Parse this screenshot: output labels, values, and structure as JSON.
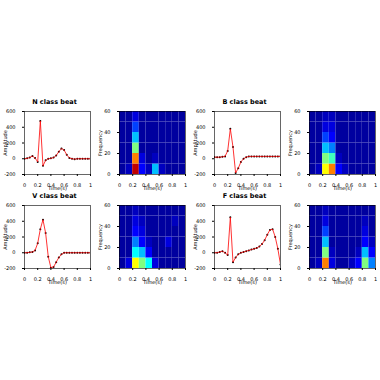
{
  "chart_data": [
    {
      "type": "line",
      "title": "N class beat",
      "x_label": "Time(s)",
      "y_label": "Amplitude",
      "xlim": [
        0,
        1
      ],
      "xticks": [
        0,
        0.2,
        0.4,
        0.6,
        0.8,
        1
      ],
      "ylim": [
        -200,
        600
      ],
      "yticks": [
        -200,
        0,
        200,
        400,
        600
      ],
      "x": [
        0,
        0.04,
        0.08,
        0.12,
        0.16,
        0.2,
        0.24,
        0.28,
        0.32,
        0.36,
        0.4,
        0.44,
        0.48,
        0.52,
        0.56,
        0.6,
        0.64,
        0.68,
        0.72,
        0.76,
        0.8,
        0.84,
        0.88,
        0.92,
        0.96,
        1
      ],
      "series": [
        {
          "color": "#000000",
          "marker": "dot",
          "line_style": "none",
          "values": [
            0,
            5,
            15,
            35,
            10,
            -40,
            480,
            -90,
            -20,
            0,
            5,
            15,
            40,
            90,
            130,
            110,
            50,
            10,
            0,
            -5,
            0,
            0,
            0,
            0,
            0,
            0
          ]
        },
        {
          "color": "#ff0000",
          "values": [
            0,
            5,
            15,
            35,
            10,
            -40,
            480,
            -90,
            -20,
            0,
            5,
            15,
            40,
            90,
            130,
            110,
            50,
            10,
            0,
            -5,
            0,
            0,
            0,
            0,
            0,
            0
          ]
        }
      ]
    },
    {
      "type": "heatmap",
      "x_label": "Time(s)",
      "y_label": "Frequency",
      "xlim": [
        0,
        1
      ],
      "xticks": [
        0,
        0.2,
        0.4,
        0.6,
        0.8,
        1
      ],
      "ylim": [
        0,
        60
      ],
      "yticks": [
        0,
        20,
        40,
        60
      ],
      "time_bins": [
        0,
        0.1,
        0.2,
        0.3,
        0.4,
        0.5,
        0.6,
        0.7,
        0.8,
        0.9,
        1
      ],
      "freq_bins": [
        0,
        10,
        20,
        30,
        40,
        50,
        60
      ],
      "clim": [
        0,
        1
      ],
      "values": [
        [
          0.05,
          0.1,
          0.9,
          0.2,
          0.1,
          0.35,
          0.1,
          0.05,
          0.05,
          0.05
        ],
        [
          0.05,
          0.05,
          0.7,
          0.15,
          0.05,
          0.1,
          0.05,
          0.05,
          0.05,
          0.05
        ],
        [
          0.05,
          0.05,
          0.5,
          0.05,
          0.05,
          0.05,
          0.05,
          0.05,
          0.05,
          0.05
        ],
        [
          0.05,
          0.05,
          0.35,
          0.05,
          0.05,
          0.05,
          0.05,
          0.05,
          0.05,
          0.05
        ],
        [
          0.05,
          0.05,
          0.25,
          0.05,
          0.05,
          0.05,
          0.05,
          0.05,
          0.05,
          0.05
        ],
        [
          0.05,
          0.05,
          0.15,
          0.05,
          0.05,
          0.05,
          0.05,
          0.05,
          0.05,
          0.05
        ]
      ]
    },
    {
      "type": "line",
      "title": "B class beat",
      "x_label": "Time(s)",
      "y_label": "Amplitude",
      "xlim": [
        0,
        1
      ],
      "xticks": [
        0,
        0.2,
        0.4,
        0.6,
        0.8,
        1
      ],
      "ylim": [
        -200,
        600
      ],
      "yticks": [
        -200,
        0,
        200,
        400,
        600
      ],
      "x": [
        0,
        0.04,
        0.08,
        0.12,
        0.16,
        0.2,
        0.24,
        0.28,
        0.32,
        0.36,
        0.4,
        0.44,
        0.48,
        0.52,
        0.56,
        0.6,
        0.64,
        0.68,
        0.72,
        0.76,
        0.8,
        0.84,
        0.88,
        0.92,
        0.96,
        1
      ],
      "series": [
        {
          "color": "#000000",
          "marker": "dot",
          "line_style": "none",
          "values": [
            20,
            20,
            20,
            25,
            30,
            100,
            380,
            150,
            -180,
            -120,
            -40,
            0,
            20,
            30,
            30,
            30,
            30,
            30,
            30,
            30,
            30,
            30,
            30,
            30,
            30,
            30
          ]
        },
        {
          "color": "#ff0000",
          "values": [
            20,
            20,
            20,
            25,
            30,
            100,
            380,
            150,
            -180,
            -120,
            -40,
            0,
            20,
            30,
            30,
            30,
            30,
            30,
            30,
            30,
            30,
            30,
            30,
            30,
            30,
            30
          ]
        }
      ]
    },
    {
      "type": "heatmap",
      "x_label": "Time(s)",
      "y_label": "Frequency",
      "xlim": [
        0,
        1
      ],
      "xticks": [
        0,
        0.2,
        0.4,
        0.6,
        0.8,
        1
      ],
      "ylim": [
        0,
        60
      ],
      "yticks": [
        0,
        20,
        40,
        60
      ],
      "time_bins": [
        0,
        0.1,
        0.2,
        0.3,
        0.4,
        0.5,
        0.6,
        0.7,
        0.8,
        0.9,
        1
      ],
      "freq_bins": [
        0,
        10,
        20,
        30,
        40,
        50,
        60
      ],
      "clim": [
        0,
        1
      ],
      "values": [
        [
          0.05,
          0.1,
          0.6,
          0.7,
          0.2,
          0.1,
          0.05,
          0.05,
          0.05,
          0.05
        ],
        [
          0.05,
          0.05,
          0.5,
          0.45,
          0.1,
          0.05,
          0.05,
          0.05,
          0.05,
          0.05
        ],
        [
          0.05,
          0.05,
          0.35,
          0.3,
          0.05,
          0.05,
          0.05,
          0.05,
          0.05,
          0.05
        ],
        [
          0.05,
          0.05,
          0.25,
          0.2,
          0.05,
          0.05,
          0.05,
          0.05,
          0.05,
          0.05
        ],
        [
          0.05,
          0.05,
          0.15,
          0.15,
          0.05,
          0.05,
          0.05,
          0.05,
          0.05,
          0.05
        ],
        [
          0.05,
          0.05,
          0.1,
          0.1,
          0.05,
          0.05,
          0.05,
          0.05,
          0.05,
          0.05
        ]
      ]
    },
    {
      "type": "line",
      "title": "V class beat",
      "x_label": "Time(s)",
      "y_label": "Amplitude",
      "xlim": [
        0,
        1
      ],
      "xticks": [
        0,
        0.2,
        0.4,
        0.6,
        0.8,
        1
      ],
      "ylim": [
        -200,
        600
      ],
      "yticks": [
        -200,
        0,
        200,
        400,
        600
      ],
      "x": [
        0,
        0.04,
        0.08,
        0.12,
        0.16,
        0.2,
        0.24,
        0.28,
        0.32,
        0.36,
        0.4,
        0.44,
        0.48,
        0.52,
        0.56,
        0.6,
        0.64,
        0.68,
        0.72,
        0.76,
        0.8,
        0.84,
        0.88,
        0.92,
        0.96,
        1
      ],
      "series": [
        {
          "color": "#000000",
          "marker": "dot",
          "line_style": "none",
          "values": [
            0,
            0,
            5,
            10,
            30,
            120,
            300,
            420,
            250,
            -50,
            -190,
            -180,
            -120,
            -60,
            -20,
            0,
            0,
            0,
            0,
            0,
            0,
            0,
            0,
            0,
            0,
            0
          ]
        },
        {
          "color": "#ff0000",
          "values": [
            0,
            0,
            5,
            10,
            30,
            120,
            300,
            420,
            250,
            -50,
            -190,
            -180,
            -120,
            -60,
            -20,
            0,
            0,
            0,
            0,
            0,
            0,
            0,
            0,
            0,
            0,
            0
          ]
        }
      ]
    },
    {
      "type": "heatmap",
      "x_label": "Time(s)",
      "y_label": "Frequency",
      "xlim": [
        0,
        1
      ],
      "xticks": [
        0,
        0.2,
        0.4,
        0.6,
        0.8,
        1
      ],
      "ylim": [
        0,
        60
      ],
      "yticks": [
        0,
        20,
        40,
        60
      ],
      "time_bins": [
        0,
        0.1,
        0.2,
        0.3,
        0.4,
        0.5,
        0.6,
        0.7,
        0.8,
        0.9,
        1
      ],
      "freq_bins": [
        0,
        10,
        20,
        30,
        40,
        50,
        60
      ],
      "clim": [
        0,
        1
      ],
      "values": [
        [
          0.05,
          0.15,
          0.6,
          0.5,
          0.4,
          0.15,
          0.05,
          0.05,
          0.05,
          0.05
        ],
        [
          0.05,
          0.05,
          0.4,
          0.35,
          0.2,
          0.05,
          0.05,
          0.05,
          0.05,
          0.05
        ],
        [
          0.05,
          0.05,
          0.3,
          0.2,
          0.1,
          0.05,
          0.05,
          0.15,
          0.05,
          0.05
        ],
        [
          0.05,
          0.05,
          0.2,
          0.15,
          0.05,
          0.05,
          0.05,
          0.05,
          0.05,
          0.05
        ],
        [
          0.05,
          0.05,
          0.15,
          0.1,
          0.05,
          0.05,
          0.05,
          0.05,
          0.1,
          0.05
        ],
        [
          0.05,
          0.05,
          0.1,
          0.05,
          0.05,
          0.05,
          0.05,
          0.05,
          0.05,
          0.05
        ]
      ]
    },
    {
      "type": "line",
      "title": "F class beat",
      "x_label": "Time(s)",
      "y_label": "Amplitude",
      "xlim": [
        0,
        1
      ],
      "xticks": [
        0,
        0.2,
        0.4,
        0.6,
        0.8,
        1
      ],
      "ylim": [
        -200,
        600
      ],
      "yticks": [
        -200,
        0,
        200,
        400,
        600
      ],
      "x": [
        0,
        0.04,
        0.08,
        0.12,
        0.16,
        0.2,
        0.24,
        0.28,
        0.32,
        0.36,
        0.4,
        0.44,
        0.48,
        0.52,
        0.56,
        0.6,
        0.64,
        0.68,
        0.72,
        0.76,
        0.8,
        0.84,
        0.88,
        0.92,
        0.96,
        1
      ],
      "series": [
        {
          "color": "#000000",
          "marker": "dot",
          "line_style": "none",
          "values": [
            0,
            0,
            10,
            20,
            0,
            -30,
            450,
            -120,
            -60,
            -20,
            0,
            10,
            20,
            30,
            40,
            50,
            60,
            80,
            110,
            160,
            230,
            290,
            300,
            200,
            50,
            -150
          ]
        },
        {
          "color": "#ff0000",
          "values": [
            0,
            0,
            10,
            20,
            0,
            -30,
            450,
            -120,
            -60,
            -20,
            0,
            10,
            20,
            30,
            40,
            50,
            60,
            80,
            110,
            160,
            230,
            290,
            300,
            200,
            50,
            -150
          ]
        }
      ]
    },
    {
      "type": "heatmap",
      "x_label": "Time(s)",
      "y_label": "Frequency",
      "xlim": [
        0,
        1
      ],
      "xticks": [
        0,
        0.2,
        0.4,
        0.6,
        0.8,
        1
      ],
      "ylim": [
        0,
        60
      ],
      "yticks": [
        0,
        20,
        40,
        60
      ],
      "time_bins": [
        0,
        0.1,
        0.2,
        0.3,
        0.4,
        0.5,
        0.6,
        0.7,
        0.8,
        0.9,
        1
      ],
      "freq_bins": [
        0,
        10,
        20,
        30,
        40,
        50,
        60
      ],
      "clim": [
        0,
        1
      ],
      "values": [
        [
          0.05,
          0.1,
          0.7,
          0.15,
          0.05,
          0.05,
          0.1,
          0.2,
          0.5,
          0.3
        ],
        [
          0.05,
          0.05,
          0.5,
          0.1,
          0.05,
          0.05,
          0.05,
          0.1,
          0.35,
          0.2
        ],
        [
          0.05,
          0.05,
          0.35,
          0.05,
          0.05,
          0.05,
          0.05,
          0.05,
          0.2,
          0.1
        ],
        [
          0.05,
          0.05,
          0.25,
          0.05,
          0.05,
          0.05,
          0.05,
          0.05,
          0.15,
          0.05
        ],
        [
          0.05,
          0.05,
          0.15,
          0.05,
          0.05,
          0.05,
          0.05,
          0.05,
          0.1,
          0.05
        ],
        [
          0.05,
          0.05,
          0.1,
          0.05,
          0.05,
          0.05,
          0.05,
          0.05,
          0.05,
          0.05
        ]
      ]
    }
  ]
}
